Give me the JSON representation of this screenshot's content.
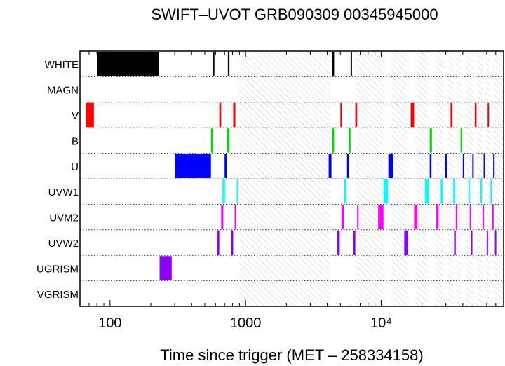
{
  "chart_data": {
    "type": "timeline",
    "title": "SWIFT–UVOT GRB090309 00345945000",
    "xlabel": "Time since trigger (MET – 258334158)",
    "ylabel": "",
    "xscale": "log",
    "xlim": [
      60,
      80000
    ],
    "xticks": [
      {
        "value": 100,
        "label": "100"
      },
      {
        "value": 1000,
        "label": "1000"
      },
      {
        "value": 10000,
        "label": "10⁴"
      }
    ],
    "grid": "dotted horizontal lines between filter rows",
    "occultation_hatch_intervals": [
      [
        900,
        1200
      ],
      [
        1200,
        4200
      ],
      [
        6500,
        10500
      ],
      [
        12000,
        15500
      ],
      [
        18000,
        22000
      ],
      [
        25000,
        29000
      ],
      [
        31000,
        34000
      ],
      [
        36000,
        39000
      ],
      [
        42000,
        48000
      ],
      [
        51000,
        56000
      ],
      [
        59000,
        64000
      ],
      [
        67000,
        80000
      ]
    ],
    "filters": [
      {
        "name": "WHITE",
        "color": "#000000",
        "exposures": [
          [
            80,
            230
          ],
          [
            575,
            585
          ],
          [
            740,
            760
          ],
          [
            4350,
            4500
          ],
          [
            5950,
            6050
          ]
        ]
      },
      {
        "name": "MAGN",
        "color": "#000000",
        "exposures": []
      },
      {
        "name": "V",
        "color": "#ff0000",
        "exposures": [
          [
            66,
            76
          ],
          [
            640,
            660
          ],
          [
            810,
            840
          ],
          [
            5000,
            5150
          ],
          [
            6450,
            6650
          ],
          [
            16500,
            17500
          ],
          [
            32500,
            33500
          ],
          [
            49000,
            50500
          ],
          [
            61000,
            62000
          ]
        ]
      },
      {
        "name": "B",
        "color": "#00dd00",
        "exposures": [
          [
            555,
            575
          ],
          [
            730,
            760
          ],
          [
            4350,
            4500
          ],
          [
            5750,
            5950
          ],
          [
            22800,
            23700
          ],
          [
            38500,
            39300
          ]
        ]
      },
      {
        "name": "U",
        "color": "#0000ff",
        "exposures": [
          [
            300,
            555
          ],
          [
            700,
            725
          ],
          [
            4100,
            4300
          ],
          [
            5600,
            5800
          ],
          [
            11300,
            12200
          ],
          [
            22800,
            23500
          ],
          [
            29500,
            30500
          ],
          [
            40000,
            41000
          ],
          [
            47000,
            48000
          ],
          [
            57000,
            58000
          ],
          [
            67000,
            68000
          ]
        ]
      },
      {
        "name": "UVW1",
        "color": "#00ffff",
        "exposures": [
          [
            675,
            705
          ],
          [
            860,
            880
          ],
          [
            5350,
            5550
          ],
          [
            10400,
            11200
          ],
          [
            21000,
            22400
          ],
          [
            27500,
            28500
          ],
          [
            34000,
            35000
          ],
          [
            44000,
            45000
          ],
          [
            54000,
            55000
          ],
          [
            64000,
            65000
          ]
        ]
      },
      {
        "name": "UVM2",
        "color": "#ff00ff",
        "exposures": [
          [
            660,
            685
          ],
          [
            830,
            850
          ],
          [
            5100,
            5300
          ],
          [
            6650,
            6750
          ],
          [
            9500,
            10400
          ],
          [
            17500,
            18500
          ],
          [
            25500,
            26500
          ],
          [
            35500,
            36500
          ],
          [
            45000,
            46000
          ],
          [
            56000,
            57000
          ],
          [
            66000,
            67000
          ]
        ]
      },
      {
        "name": "UVW2",
        "color": "#8800ff",
        "exposures": [
          [
            615,
            640
          ],
          [
            785,
            810
          ],
          [
            4750,
            4950
          ],
          [
            6250,
            6450
          ],
          [
            14800,
            15700
          ],
          [
            34500,
            35500
          ],
          [
            46000,
            47000
          ],
          [
            60000,
            61000
          ],
          [
            69000,
            70000
          ]
        ]
      },
      {
        "name": "UGRISM",
        "color": "#8800ff",
        "exposures": [
          [
            232,
            285
          ]
        ]
      },
      {
        "name": "VGRISM",
        "color": "#000000",
        "exposures": []
      }
    ]
  }
}
